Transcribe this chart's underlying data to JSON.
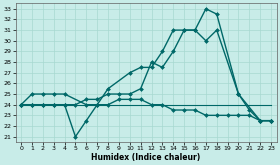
{
  "xlabel": "Humidex (Indice chaleur)",
  "bg_color": "#c8ece8",
  "grid_color": "#a8d8d0",
  "line_color": "#006868",
  "xlim": [
    -0.5,
    23.5
  ],
  "ylim": [
    20.5,
    33.5
  ],
  "xticks": [
    0,
    1,
    2,
    3,
    4,
    5,
    6,
    7,
    8,
    9,
    10,
    11,
    12,
    13,
    14,
    15,
    16,
    17,
    18,
    19,
    20,
    21,
    22,
    23
  ],
  "yticks": [
    21,
    22,
    23,
    24,
    25,
    26,
    27,
    28,
    29,
    30,
    31,
    32,
    33
  ],
  "series": [
    {
      "x": [
        0,
        1,
        2,
        3,
        4,
        6,
        7,
        8,
        10,
        11,
        12,
        13,
        14,
        15,
        16,
        17,
        18,
        20,
        21,
        22,
        23
      ],
      "y": [
        24,
        25,
        25,
        25,
        25,
        24,
        24,
        25.5,
        27,
        27.5,
        27.5,
        29,
        31,
        31,
        31,
        33,
        32.5,
        25,
        23.5,
        22.5,
        22.5
      ],
      "marker": "D",
      "markersize": 2.0,
      "linewidth": 1.0
    },
    {
      "x": [
        0,
        1,
        2,
        3,
        4,
        5,
        6,
        7,
        8,
        9,
        10,
        11,
        12,
        13,
        14,
        15,
        16,
        17,
        18,
        20,
        22,
        23
      ],
      "y": [
        24,
        24,
        24,
        24,
        24,
        24,
        24.5,
        24.5,
        25,
        25,
        25,
        25.5,
        28,
        27.5,
        29,
        31,
        31,
        30,
        31,
        25,
        22.5,
        22.5
      ],
      "marker": "D",
      "markersize": 2.0,
      "linewidth": 1.0
    },
    {
      "x": [
        0,
        1,
        2,
        3,
        4,
        5,
        6,
        7,
        8,
        9,
        10,
        11,
        12,
        13,
        14,
        15,
        16,
        17,
        18,
        19,
        20,
        21,
        22,
        23
      ],
      "y": [
        24,
        24,
        24,
        24,
        24,
        24,
        24,
        24,
        24,
        24,
        24,
        24,
        24,
        24,
        24,
        24,
        24,
        24,
        24,
        24,
        24,
        24,
        24,
        24
      ],
      "marker": null,
      "markersize": 0,
      "linewidth": 0.8
    },
    {
      "x": [
        0,
        1,
        2,
        3,
        4,
        5,
        6,
        7,
        8,
        9,
        10,
        11,
        12,
        13,
        14,
        15,
        16,
        17,
        18,
        19,
        20,
        21,
        22,
        23
      ],
      "y": [
        24,
        24,
        24,
        24,
        24,
        21,
        22.5,
        24,
        24,
        24.5,
        24.5,
        24.5,
        24,
        24,
        23.5,
        23.5,
        23.5,
        23,
        23,
        23,
        23,
        23,
        22.5,
        22.5
      ],
      "marker": "D",
      "markersize": 2.0,
      "linewidth": 1.0
    }
  ]
}
